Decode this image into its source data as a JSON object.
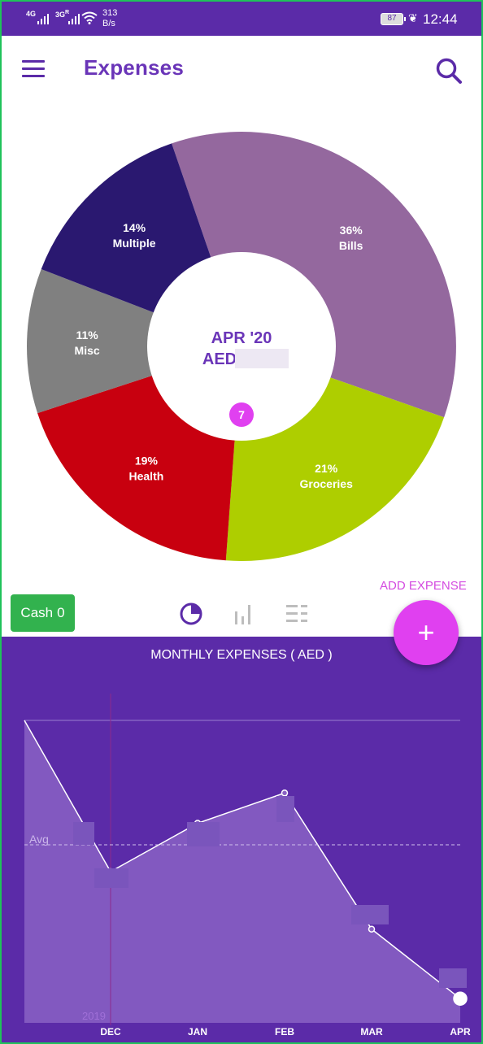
{
  "status_bar": {
    "sig1": "4G",
    "sig2": "3G",
    "sig2_sup": "R",
    "net_speed_value": "313",
    "net_speed_unit": "B/s",
    "battery": "87",
    "time": "12:44"
  },
  "app_bar": {
    "title": "Expenses",
    "menu_icon": "hamburger-menu-icon",
    "search_icon": "search-icon"
  },
  "donut": {
    "center_period": "APR '20",
    "center_currency": "AED",
    "count": "7",
    "slices": [
      {
        "category": "Bills",
        "percent_label": "36%",
        "percent": 36,
        "color": "#94689e"
      },
      {
        "category": "Groceries",
        "percent_label": "21%",
        "percent": 21,
        "color": "#aece00"
      },
      {
        "category": "Health",
        "percent_label": "19%",
        "percent": 19,
        "color": "#c8000f"
      },
      {
        "category": "Misc",
        "percent_label": "11%",
        "percent": 11,
        "color": "#808080"
      },
      {
        "category": "Multiple",
        "percent_label": "14%",
        "percent": 14,
        "color": "#2a1870"
      }
    ]
  },
  "actions": {
    "add_expense": "ADD EXPENSE",
    "cash_label": "Cash",
    "cash_value": "0",
    "fab_label": "+",
    "view_icons": [
      "pie-chart-icon",
      "bar-chart-icon",
      "list-view-icon"
    ]
  },
  "chart_data": {
    "type": "area",
    "title": "MONTHLY EXPENSES  ( AED )",
    "categories": [
      "DEC",
      "JAN",
      "FEB",
      "MAR",
      "APR"
    ],
    "year_marker": "2019",
    "avg_label": "Avg",
    "relative_values": [
      0.5,
      0.66,
      0.76,
      0.31,
      0.08
    ],
    "start_value": 1.0,
    "grid": false,
    "colors": {
      "fill": "#8a62c4",
      "line": "#ffffff",
      "background": "#5b2ba8"
    }
  }
}
